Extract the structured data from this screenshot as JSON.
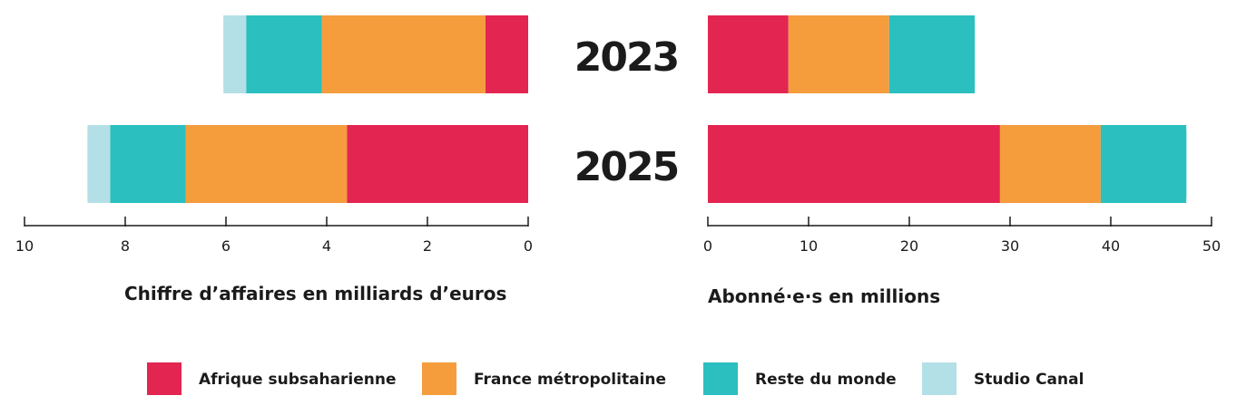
{
  "chart_data": {
    "type": "bar",
    "orientation": "horizontal",
    "layout": "back-to-back",
    "categories": [
      "2023",
      "2025"
    ],
    "series_names": [
      "Afrique subsaharienne",
      "France métropolitaine",
      "Reste du monde",
      "Studio Canal"
    ],
    "colors": {
      "Afrique subsaharienne": "#e32651",
      "France métropolitaine": "#f59d3d",
      "Reste du monde": "#2bbfbf",
      "Studio Canal": "#b3e0e6"
    },
    "left": {
      "xlabel": "Chiffre d’affaires en milliards d’euros",
      "xlim": [
        10,
        0
      ],
      "reversed": true,
      "ticks": [
        10,
        8,
        6,
        4,
        2,
        0
      ],
      "series": [
        {
          "name": "Afrique subsaharienne",
          "values": [
            0.85,
            3.6
          ]
        },
        {
          "name": "France métropolitaine",
          "values": [
            3.25,
            3.2
          ]
        },
        {
          "name": "Reste du monde",
          "values": [
            1.5,
            1.5
          ]
        },
        {
          "name": "Studio Canal",
          "values": [
            0.45,
            0.45
          ]
        }
      ]
    },
    "right": {
      "xlabel": "Abonné·e·s en millions",
      "xlim": [
        0,
        50
      ],
      "ticks": [
        0,
        10,
        20,
        30,
        40,
        50
      ],
      "series": [
        {
          "name": "Afrique subsaharienne",
          "values": [
            8,
            29
          ]
        },
        {
          "name": "France métropolitaine",
          "values": [
            10,
            10
          ]
        },
        {
          "name": "Reste du monde",
          "values": [
            8.5,
            8.5
          ]
        },
        {
          "name": "Studio Canal",
          "values": [
            0,
            0
          ]
        }
      ]
    },
    "legend": {
      "position": "bottom",
      "items": [
        "Afrique subsaharienne",
        "France métropolitaine",
        "Reste du monde",
        "Studio Canal"
      ]
    },
    "grid": false
  }
}
